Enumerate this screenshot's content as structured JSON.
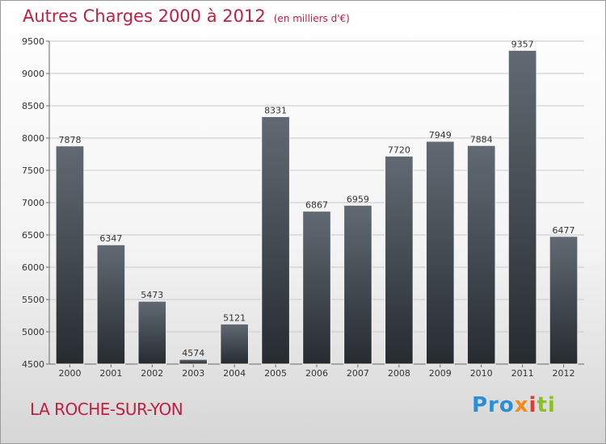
{
  "title": "Autres Charges 2000 à 2012",
  "subtitle": "(en milliers d'€)",
  "city": "LA ROCHE-SUR-YON",
  "logo": {
    "brand": "Proxiti",
    "parts": [
      "Pro",
      "x",
      "i",
      "ti"
    ]
  },
  "colors": {
    "title": "#c0203f",
    "bar_top": "#616a73",
    "bar_bottom": "#262b30",
    "grid": "#c8c8c8"
  },
  "chart_data": {
    "type": "bar",
    "categories": [
      "2000",
      "2001",
      "2002",
      "2003",
      "2004",
      "2005",
      "2006",
      "2007",
      "2008",
      "2009",
      "2010",
      "2011",
      "2012"
    ],
    "values": [
      7878,
      6347,
      5473,
      4574,
      5121,
      8331,
      6867,
      6959,
      7720,
      7949,
      7884,
      9357,
      6477
    ],
    "ylim": [
      4500,
      9500
    ],
    "yticks": [
      4500,
      5000,
      5500,
      6000,
      6500,
      7000,
      7500,
      8000,
      8500,
      9000,
      9500
    ],
    "xlabel": "",
    "ylabel": "",
    "grid": true,
    "legend": "none"
  }
}
